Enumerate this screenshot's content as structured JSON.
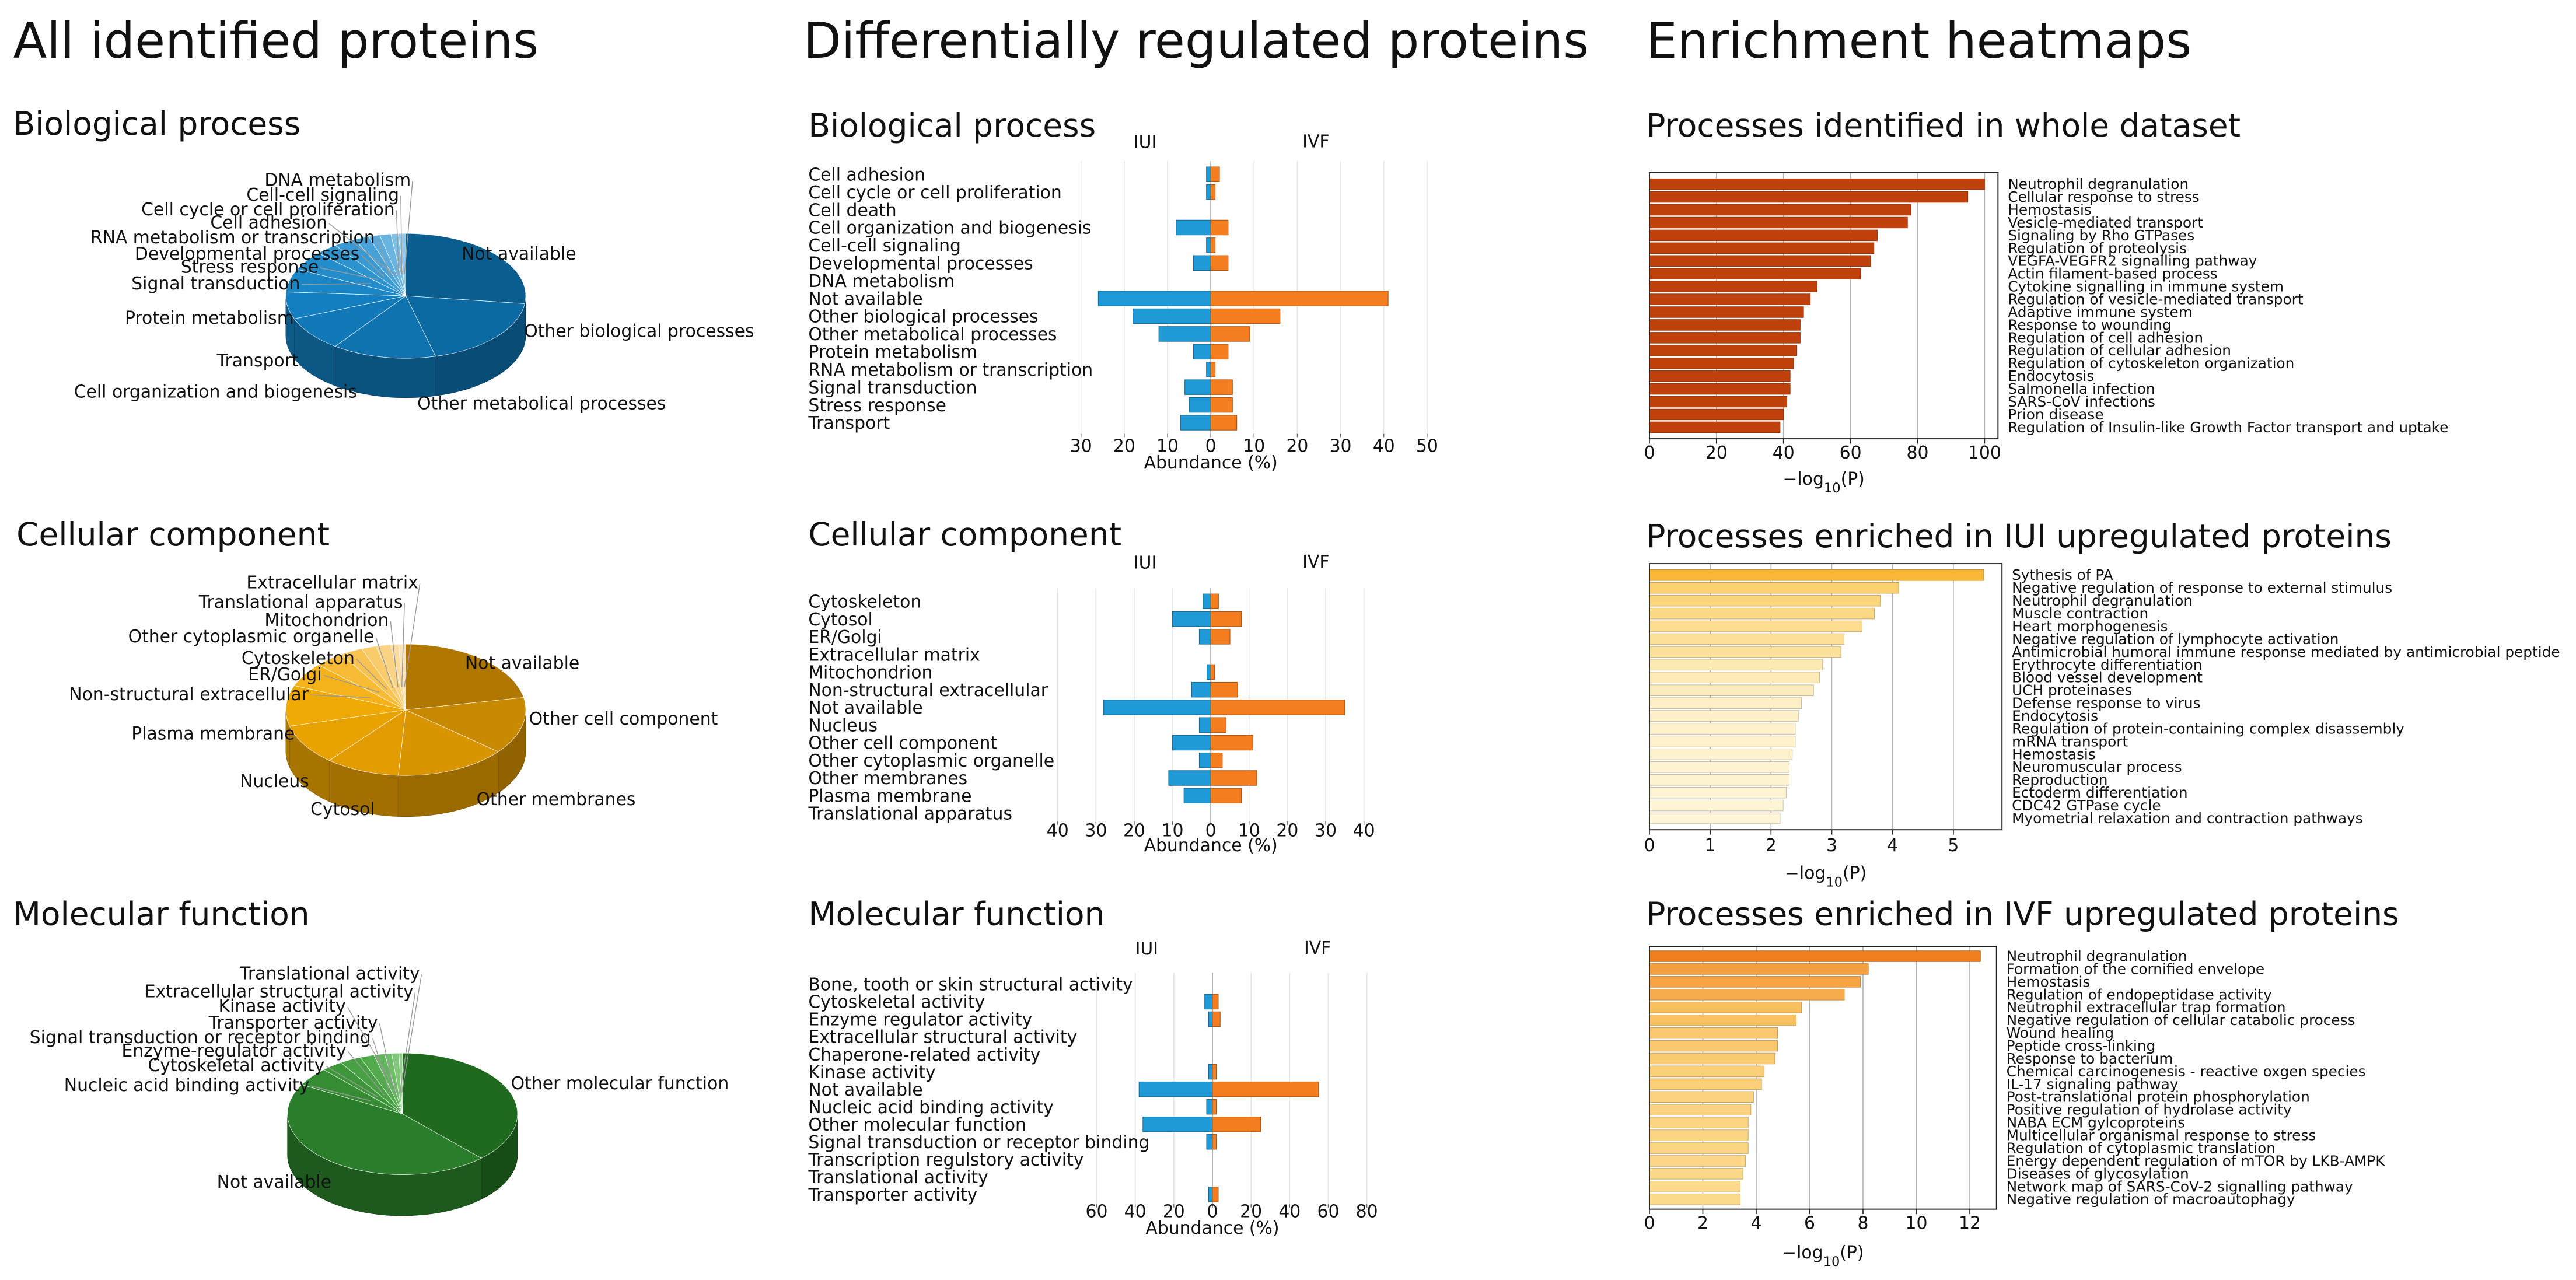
{
  "headings": [
    "All identified proteins",
    "Differentially regulated proteins",
    "Enrichment heatmaps"
  ],
  "chart_data": [
    {
      "type": "pie",
      "title": "Biological process",
      "categories": [
        "Not available",
        "Other biological processes",
        "Other metabolical processes",
        "Cell organization and biogenesis",
        "Transport",
        "Protein metabolism",
        "Signal transduction",
        "Stress response",
        "Developmental processes",
        "RNA metabolism or transcription",
        "Cell adhesion",
        "Cell cycle or cell proliferation",
        "Cell-cell signaling",
        "DNA metabolism"
      ],
      "values": [
        27,
        19,
        14,
        9,
        7,
        6,
        5,
        3,
        3,
        2,
        1.5,
        1.5,
        1,
        1
      ],
      "colors": [
        "#0a5d8f",
        "#0c6aa3",
        "#0f73b0",
        "#1179b8",
        "#147fc0",
        "#1a86c6",
        "#238ccb",
        "#2d93cf",
        "#399ad3",
        "#48a2d7",
        "#58abdc",
        "#6ab4e0",
        "#7ebee5",
        "#94c9ea"
      ]
    },
    {
      "type": "pie",
      "title": "Cellular component",
      "categories": [
        "Not available",
        "Other cell component",
        "Other membranes",
        "Cytosol",
        "Nucleus",
        "Plasma membrane",
        "Non-structural extracellular",
        "ER/Golgi",
        "Cytoskeleton",
        "Other cytoplasmic organelle",
        "Mitochondrion",
        "Translational apparatus",
        "Extracellular matrix"
      ],
      "values": [
        22,
        14,
        15,
        10,
        10,
        10,
        6,
        4,
        3,
        2,
        2,
        1,
        1
      ],
      "colors": [
        "#b07800",
        "#c88a00",
        "#d99500",
        "#e29c00",
        "#e9a300",
        "#f0aa05",
        "#f5b21a",
        "#f7bb35",
        "#f8c350",
        "#f9cb6a",
        "#fad384",
        "#fbdb9e",
        "#fce3b8"
      ]
    },
    {
      "type": "pie",
      "title": "Molecular function",
      "categories": [
        "Other molecular function",
        "Not available",
        "Nucleic acid binding activity",
        "Cytoskeletal activity",
        "Enzyme-regulator activity",
        "Signal transduction or receptor binding",
        "Transporter activity",
        "Kinase activity",
        "Extracellular structural activity",
        "Translational activity"
      ],
      "values": [
        38,
        45,
        5,
        3,
        3,
        2,
        1.5,
        1,
        1,
        0.5
      ],
      "colors": [
        "#1f6a1f",
        "#2a7d2a",
        "#358c33",
        "#3e963b",
        "#47a043",
        "#52aa4d",
        "#60b45a",
        "#70bd69",
        "#82c67b",
        "#96cf8f"
      ]
    },
    {
      "type": "butterfly",
      "title": "Biological process",
      "xlabel": "Abundance (%)",
      "categories": [
        "Cell adhesion",
        "Cell cycle or cell proliferation",
        "Cell death",
        "Cell organization and biogenesis",
        "Cell-cell signaling",
        "Developmental processes",
        "DNA metabolism",
        "Not available",
        "Other biological processes",
        "Other metabolical processes",
        "Protein metabolism",
        "RNA metabolism or transcription",
        "Signal transduction",
        "Stress response",
        "Transport"
      ],
      "series": [
        {
          "name": "IUI",
          "color": "#1f9ad6",
          "values": [
            -1,
            -1,
            0,
            -8,
            -1,
            -4,
            0,
            -26,
            -18,
            -12,
            -4,
            -1,
            -6,
            -5,
            -7
          ]
        },
        {
          "name": "IVF",
          "color": "#f47d20",
          "values": [
            2,
            1,
            0,
            4,
            1,
            4,
            0,
            41,
            16,
            9,
            4,
            1,
            5,
            5,
            6
          ]
        }
      ],
      "xlim": [
        -31,
        51
      ],
      "xticks": [
        {
          "value": -30,
          "label": "30"
        },
        {
          "value": -20,
          "label": "20"
        },
        {
          "value": -10,
          "label": "10"
        },
        0,
        10,
        20,
        30,
        40,
        50
      ],
      "grid": true
    },
    {
      "type": "butterfly",
      "title": "Cellular component",
      "xlabel": "Abundance (%)",
      "categories": [
        "Cytoskeleton",
        "Cytosol",
        "ER/Golgi",
        "Extracellular matrix",
        "Mitochondrion",
        "Non-structural extracellular",
        "Not available",
        "Nucleus",
        "Other cell component",
        "Other cytoplasmic organelle",
        "Other membranes",
        "Plasma membrane",
        "Translational apparatus"
      ],
      "series": [
        {
          "name": "IUI",
          "color": "#1f9ad6",
          "values": [
            -2,
            -10,
            -3,
            0,
            -1,
            -5,
            -28,
            -3,
            -10,
            -3,
            -11,
            -7,
            0
          ]
        },
        {
          "name": "IVF",
          "color": "#f47d20",
          "values": [
            2,
            8,
            5,
            0,
            1,
            7,
            35,
            4,
            11,
            3,
            12,
            8,
            0
          ]
        }
      ],
      "xlim": [
        -42,
        42
      ],
      "xticks": [
        {
          "value": -40,
          "label": "40"
        },
        {
          "value": -30,
          "label": "30"
        },
        {
          "value": -20,
          "label": "20"
        },
        {
          "value": -10,
          "label": "10"
        },
        0,
        10,
        20,
        30,
        40
      ],
      "grid": true
    },
    {
      "type": "butterfly",
      "title": "Molecular function",
      "xlabel": "Abundance (%)",
      "categories": [
        "Bone, tooth or skin structural activity",
        "Cytoskeletal activity",
        "Enzyme regulator activity",
        "Extracellular structural activity",
        "Chaperone-related activity",
        "Kinase activity",
        "Not available",
        "Nucleic acid binding activity",
        "Other molecular function",
        "Signal transduction or receptor binding",
        "Transcription regulstory activity",
        "Translational activity",
        "Transporter activity"
      ],
      "series": [
        {
          "name": "IUI",
          "color": "#1f9ad6",
          "values": [
            0,
            -4,
            -2,
            0,
            0,
            -2,
            -38,
            -3,
            -36,
            -3,
            0,
            0,
            -2
          ]
        },
        {
          "name": "IVF",
          "color": "#f47d20",
          "values": [
            0,
            3,
            4,
            0,
            0,
            2,
            55,
            2,
            25,
            2,
            0,
            0,
            3
          ]
        }
      ],
      "xlim": [
        -62,
        84
      ],
      "xticks": [
        {
          "value": -60,
          "label": "60"
        },
        {
          "value": -40,
          "label": "40"
        },
        {
          "value": -20,
          "label": "20"
        },
        0,
        20,
        40,
        60,
        80
      ],
      "grid": true
    },
    {
      "type": "hbar",
      "title": "Processes identified in whole dataset",
      "xlabel": [
        "−log",
        "10",
        "(P)"
      ],
      "categories": [
        "Neutrophil degranulation",
        "Cellular response to stress",
        "Hemostasis",
        "Vesicle-mediated transport",
        "Signaling by Rho GTPases",
        "Regulation of proteolysis",
        "VEGFA-VEGFR2 signalling pathway",
        "Actin filament-based process",
        "Cytokine signalling in immune system",
        "Regulation of vesicle-mediated transport",
        "Adaptive immune system",
        "Response to wounding",
        "Regulation of cell adhesion",
        "Regulation of cellular adhesion",
        "Regulation of cytoskeleton organization",
        "Endocytosis",
        "Salmonella infection",
        "SARS-CoV infections",
        "Prion disease",
        "Regulation of Insulin-like Growth Factor transport and uptake"
      ],
      "values": [
        100,
        95,
        78,
        77,
        68,
        67,
        66,
        63,
        50,
        48,
        46,
        45,
        45,
        44,
        43,
        42,
        42,
        41,
        40,
        39
      ],
      "color": "#c0410c",
      "xlim": [
        0,
        104
      ],
      "xticks": [
        0,
        20,
        40,
        60,
        80,
        100
      ],
      "grid": true
    },
    {
      "type": "hbar",
      "title": "Processes enriched in IUI upregulated proteins",
      "xlabel": [
        "−log",
        "10",
        "(P)"
      ],
      "categories": [
        "Sythesis of PA",
        "Negative regulation of response to external stimulus",
        "Neutrophil degranulation",
        "Muscle contraction",
        "Heart morphogenesis",
        "Negative regulation of lymphocyte activation",
        "Antimicrobial humoral immune response mediated by antimicrobial peptide",
        "Erythrocyte differentiation",
        "Blood vessel development",
        "UCH proteinases",
        "Defense response to virus",
        "Endocytosis",
        "Regulation of protein-containing complex disassembly",
        "mRNA transport",
        "Hemostasis",
        "Neuromuscular process",
        "Reproduction",
        "Ectoderm differentiation",
        "CDC42 GTPase cycle",
        "Myometrial relaxation and contraction pathways"
      ],
      "values": [
        5.5,
        4.1,
        3.8,
        3.7,
        3.5,
        3.2,
        3.15,
        2.85,
        2.8,
        2.7,
        2.5,
        2.45,
        2.4,
        2.4,
        2.35,
        2.3,
        2.3,
        2.25,
        2.2,
        2.15
      ],
      "colors": [
        "#f8b737",
        "#fbd170",
        "#fbd57c",
        "#fbd884",
        "#fcdc8e",
        "#fce09a",
        "#fce19d",
        "#fde9b4",
        "#fdeab7",
        "#fdecbd",
        "#fdefc6",
        "#fdf0c8",
        "#fef1cb",
        "#fef1cb",
        "#fef2ce",
        "#fef3d1",
        "#fef3d1",
        "#fef4d3",
        "#fef5d6",
        "#fef5d8"
      ],
      "xlim": [
        0,
        5.8
      ],
      "xticks": [
        0,
        1,
        2,
        3,
        4,
        5
      ],
      "grid": true
    },
    {
      "type": "hbar",
      "title": "Processes enriched in IVF upregulated proteins",
      "xlabel": [
        "−log",
        "10",
        "(P)"
      ],
      "categories": [
        "Neutrophil degranulation",
        "Formation of the cornified envelope",
        "Hemostasis",
        "Regulation of endopeptidase activity",
        "Neutrophil extracellular trap formation",
        "Negative regulation of cellular catabolic process",
        "Wound healing",
        "Peptide cross-linking",
        "Response to bacterium",
        "Chemical carcinogenesis - reactive oxgen species",
        "IL-17 signaling pathway",
        "Post-translational protein phosphorylation",
        "Positive regulation of hydrolase activity",
        "NABA ECM gylcoproteins",
        "Multicellular organismal response to stress",
        "Regulation of cytoplasmic translation",
        "Energy dependent regulation of mTOR by LKB-AMPK",
        "Diseases of glycosylation",
        "Network map of SARS-CoV-2 signalling pathway",
        "Negative regulation of macroautophagy"
      ],
      "values": [
        12.4,
        8.2,
        7.9,
        7.3,
        5.7,
        5.5,
        4.8,
        4.8,
        4.7,
        4.3,
        4.2,
        3.9,
        3.8,
        3.7,
        3.7,
        3.7,
        3.6,
        3.5,
        3.4,
        3.4
      ],
      "colors": [
        "#f07f1e",
        "#f5a03e",
        "#f6a443",
        "#f7ab4b",
        "#f9c060",
        "#f9c263",
        "#fac96f",
        "#fac96f",
        "#faca71",
        "#fbce78",
        "#fbcf7a",
        "#fbd27f",
        "#fbd381",
        "#fcd583",
        "#fcd583",
        "#fcd583",
        "#fcd686",
        "#fcd889",
        "#fcd98b",
        "#fcd98b"
      ],
      "xlim": [
        0,
        13
      ],
      "xticks": [
        0,
        2,
        4,
        6,
        8,
        10,
        12
      ],
      "grid": true
    }
  ]
}
